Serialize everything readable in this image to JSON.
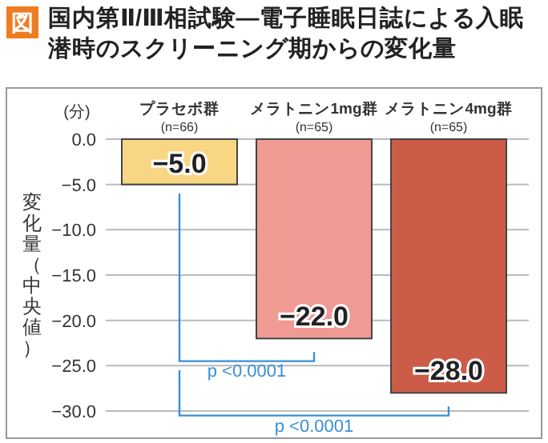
{
  "chart_data": {
    "type": "bar",
    "title": "国内第Ⅱ/Ⅲ相試験—電子睡眠日誌による入眠潜時のスクリーニング期からの変化量",
    "ylabel": "変化量（中央値）",
    "annotations": [
      "図",
      "(分)",
      "p <0.0001",
      "p <0.0001"
    ],
    "categories": [
      "プラセボ群\n(n=66)",
      "メラトニン1mg群\n(n=65)",
      "メラトニン4mg群\n(n=65)"
    ],
    "values": [
      -5.0,
      -22.0,
      -28.0
    ],
    "colors": [
      "#f9d684",
      "#f09a94",
      "#cc5c48"
    ],
    "value_labels": [
      "−5.0",
      "−22.0",
      "−28.0"
    ],
    "ylim": [
      -30,
      0
    ],
    "yticks": [
      {
        "value": 0,
        "label": "0.0"
      },
      {
        "value": -5,
        "label": "−5.0"
      },
      {
        "value": -10,
        "label": "−10.0"
      },
      {
        "value": -15,
        "label": "−15.0"
      },
      {
        "value": -20,
        "label": "−20.0"
      },
      {
        "value": -25,
        "label": "−25.0"
      },
      {
        "value": -30,
        "label": "−30.0"
      }
    ],
    "grid": "y"
  }
}
